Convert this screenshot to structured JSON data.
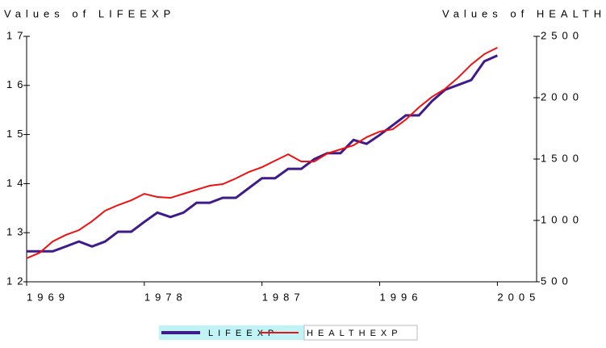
{
  "chart_data": {
    "type": "line",
    "y_title": "Values of LIFEEXP",
    "y2_title": "Values of HEALTHEXP",
    "x": [
      1969,
      1970,
      1971,
      1972,
      1973,
      1974,
      1975,
      1976,
      1977,
      1978,
      1979,
      1980,
      1981,
      1982,
      1983,
      1984,
      1985,
      1986,
      1987,
      1988,
      1989,
      1990,
      1991,
      1992,
      1993,
      1994,
      1995,
      1996,
      1997,
      1998,
      1999,
      2000,
      2001,
      2002,
      2003,
      2004,
      2005
    ],
    "series": [
      {
        "name": "LIFEEXP",
        "color": "#3f1a8a",
        "values": [
          12.62,
          12.62,
          12.62,
          12.72,
          12.82,
          12.72,
          12.82,
          13.02,
          13.02,
          13.22,
          13.41,
          13.32,
          13.41,
          13.61,
          13.61,
          13.71,
          13.71,
          13.91,
          14.11,
          14.11,
          14.3,
          14.3,
          14.5,
          14.62,
          14.62,
          14.89,
          14.81,
          14.99,
          15.19,
          15.39,
          15.39,
          15.68,
          15.91,
          16.01,
          16.11,
          16.49,
          16.61
        ]
      },
      {
        "name": "HEALTHEXP",
        "color": "#ee1111",
        "axis": "y2",
        "values": [
          691,
          737,
          829,
          882,
          921,
          993,
          1079,
          1125,
          1164,
          1217,
          1191,
          1184,
          1217,
          1250,
          1283,
          1296,
          1342,
          1395,
          1434,
          1487,
          1539,
          1480,
          1480,
          1546,
          1579,
          1612,
          1678,
          1724,
          1743,
          1822,
          1921,
          2007,
          2072,
          2164,
          2270,
          2355,
          2408
        ]
      }
    ],
    "xlim": [
      1969,
      2008
    ],
    "xticks": [
      1969,
      1978,
      1987,
      1996,
      2005
    ],
    "ylim": [
      12,
      17
    ],
    "yticks": [
      12,
      13,
      14,
      15,
      16,
      17
    ],
    "y2lim": [
      500,
      2500
    ],
    "y2ticks": [
      500,
      1000,
      1500,
      2000,
      2500
    ]
  }
}
